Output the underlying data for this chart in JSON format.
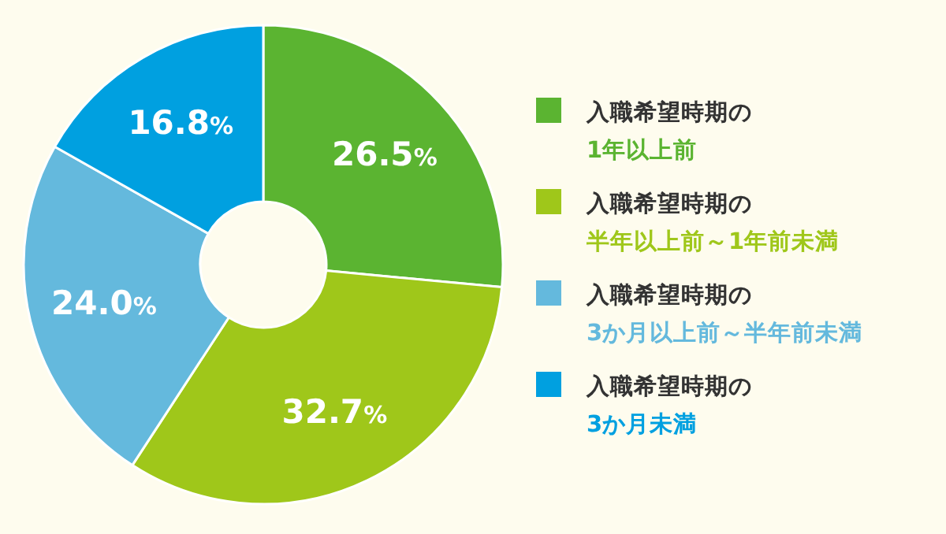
{
  "chart_data": {
    "type": "donut",
    "categories": [
      "入職希望時期の1年以上前",
      "入職希望時期の半年以上前～1年前未満",
      "入職希望時期の3か月以上前～半年前未満",
      "入職希望時期の3か月未満"
    ],
    "values": [
      26.5,
      32.7,
      24.0,
      16.8
    ],
    "colors": [
      "#5bb431",
      "#9fc71a",
      "#64b9dd",
      "#00a0e0"
    ],
    "value_labels": [
      "26.5%",
      "32.7%",
      "24.0%",
      "16.8%"
    ],
    "legend": "right"
  }
}
